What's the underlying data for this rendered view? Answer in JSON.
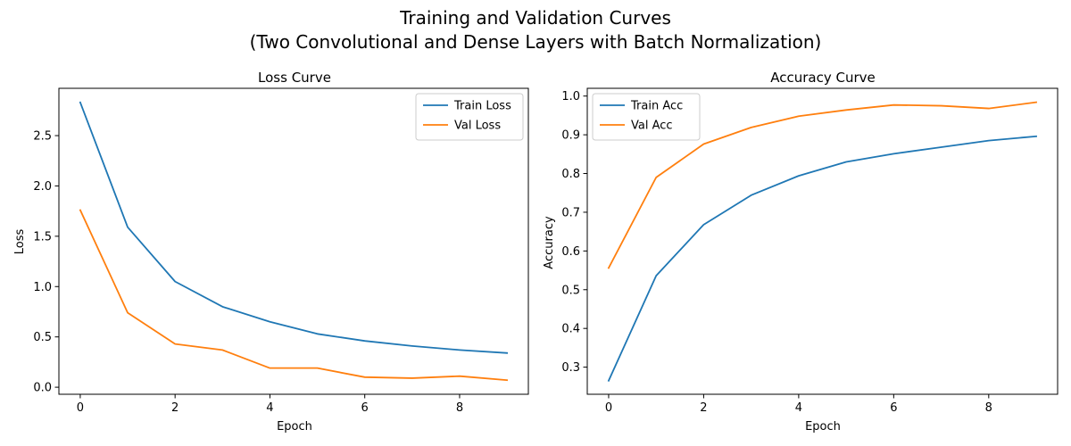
{
  "figure": {
    "suptitle_line1": "Training and Validation Curves",
    "suptitle_line2": "(Two Convolutional and Dense Layers with Batch Normalization)"
  },
  "colors": {
    "train": "#1f77b4",
    "val": "#ff7f0e"
  },
  "chart_data": [
    {
      "type": "line",
      "title": "Loss Curve",
      "xlabel": "Epoch",
      "ylabel": "Loss",
      "x": [
        0,
        1,
        2,
        3,
        4,
        5,
        6,
        7,
        8,
        9
      ],
      "xlim": [
        -0.45,
        9.45
      ],
      "ylim": [
        -0.07,
        2.97
      ],
      "xticks": [
        0,
        2,
        4,
        6,
        8
      ],
      "xtick_labels": [
        "0",
        "2",
        "4",
        "6",
        "8"
      ],
      "yticks": [
        0.0,
        0.5,
        1.0,
        1.5,
        2.0,
        2.5
      ],
      "ytick_labels": [
        "0.0",
        "0.5",
        "1.0",
        "1.5",
        "2.0",
        "2.5"
      ],
      "grid": false,
      "legend_position": "top-right",
      "series": [
        {
          "name": "Train Loss",
          "values": [
            2.83,
            1.59,
            1.05,
            0.8,
            0.65,
            0.53,
            0.46,
            0.41,
            0.37,
            0.34
          ]
        },
        {
          "name": "Val Loss",
          "values": [
            1.76,
            0.74,
            0.43,
            0.37,
            0.19,
            0.19,
            0.1,
            0.09,
            0.11,
            0.07
          ]
        }
      ]
    },
    {
      "type": "line",
      "title": "Accuracy Curve",
      "xlabel": "Epoch",
      "ylabel": "Accuracy",
      "x": [
        0,
        1,
        2,
        3,
        4,
        5,
        6,
        7,
        8,
        9
      ],
      "xlim": [
        -0.45,
        9.45
      ],
      "ylim": [
        0.23,
        1.02
      ],
      "xticks": [
        0,
        2,
        4,
        6,
        8
      ],
      "xtick_labels": [
        "0",
        "2",
        "4",
        "6",
        "8"
      ],
      "yticks": [
        0.3,
        0.4,
        0.5,
        0.6,
        0.7,
        0.8,
        0.9,
        1.0
      ],
      "ytick_labels": [
        "0.3",
        "0.4",
        "0.5",
        "0.6",
        "0.7",
        "0.8",
        "0.9",
        "1.0"
      ],
      "grid": false,
      "legend_position": "top-left",
      "series": [
        {
          "name": "Train Acc",
          "values": [
            0.265,
            0.536,
            0.668,
            0.744,
            0.794,
            0.83,
            0.851,
            0.868,
            0.885,
            0.896
          ]
        },
        {
          "name": "Val Acc",
          "values": [
            0.556,
            0.79,
            0.876,
            0.919,
            0.948,
            0.964,
            0.977,
            0.975,
            0.968,
            0.984
          ]
        }
      ]
    }
  ]
}
